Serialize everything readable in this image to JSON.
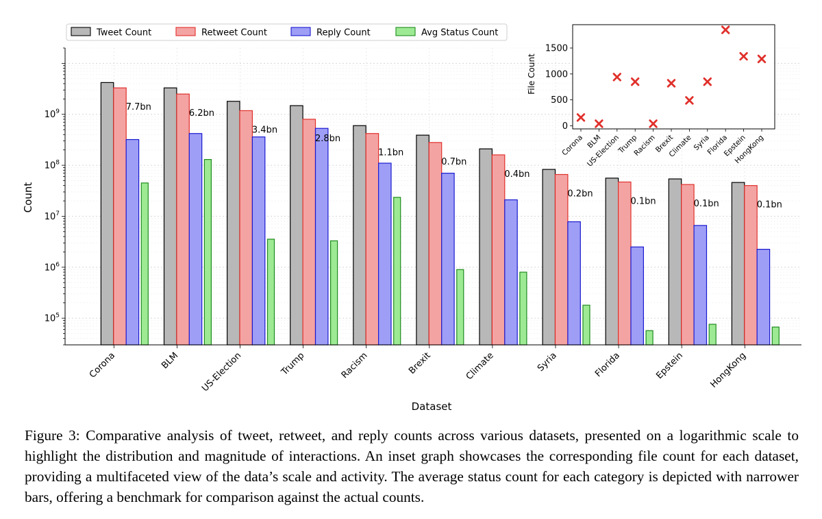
{
  "chart_data": [
    {
      "type": "bar",
      "scale": "log",
      "title": "",
      "xlabel": "Dataset",
      "ylabel": "Count",
      "categories": [
        "Corona",
        "BLM",
        "US-Election",
        "Trump",
        "Racism",
        "Brexit",
        "Climate",
        "Syria",
        "Florida",
        "Epstein",
        "HongKong"
      ],
      "series": [
        {
          "name": "Tweet Count",
          "color": "#b8b8b8",
          "edge": "#000000",
          "values": [
            4200000000,
            3300000000,
            1800000000,
            1480000000,
            600000000,
            390000000,
            210000000,
            83000000,
            56000000,
            54000000,
            46000000
          ]
        },
        {
          "name": "Retweet Count",
          "color": "#f4a3a3",
          "edge": "#e0302b",
          "values": [
            3300000000,
            2500000000,
            1180000000,
            800000000,
            420000000,
            280000000,
            160000000,
            66000000,
            47000000,
            42000000,
            40000000
          ]
        },
        {
          "name": "Reply Count",
          "color": "#9e9ef6",
          "edge": "#1a1ad0",
          "values": [
            320000000,
            420000000,
            360000000,
            530000000,
            110000000,
            70000000,
            21000000,
            7800000,
            2500000,
            6600000,
            2250000
          ]
        },
        {
          "name": "Avg Status Count",
          "color": "#9eea94",
          "edge": "#1e8a1e",
          "narrow": true,
          "values": [
            45000000,
            130000000,
            3550000,
            3300000,
            23500000,
            900000,
            800000,
            180000,
            57000,
            76000,
            67000
          ]
        }
      ],
      "data_labels": [
        "7.7bn",
        "6.2bn",
        "3.4bn",
        "2.8bn",
        "1.1bn",
        "0.7bn",
        "0.4bn",
        "0.2bn",
        "0.1bn",
        "0.1bn",
        "0.1bn"
      ],
      "yticks": [
        {
          "value": 100000,
          "base": "10",
          "exp": "5"
        },
        {
          "value": 1000000,
          "base": "10",
          "exp": "6"
        },
        {
          "value": 10000000,
          "base": "10",
          "exp": "7"
        },
        {
          "value": 100000000,
          "base": "10",
          "exp": "8"
        },
        {
          "value": 1000000000,
          "base": "10",
          "exp": "9"
        }
      ],
      "ylim": [
        30000,
        20000000000
      ],
      "grid": true,
      "legend": "top"
    },
    {
      "type": "scatter",
      "inset": true,
      "title": "",
      "xlabel": "",
      "ylabel": "File Count",
      "marker": "x",
      "color": "#e0302b",
      "categories": [
        "Corona",
        "BLM",
        "US-Election",
        "Trump",
        "Racism",
        "Brexit",
        "Climate",
        "Syria",
        "Florida",
        "Epstein",
        "HongKong"
      ],
      "values": [
        160,
        40,
        940,
        850,
        40,
        820,
        490,
        850,
        1850,
        1340,
        1290
      ],
      "yticks": [
        "0",
        "500",
        "1000",
        "1500"
      ],
      "ylim": [
        -60,
        1950
      ]
    }
  ],
  "caption": "Figure 3: Comparative analysis of tweet, retweet, and reply counts across various datasets, presented on a logarithmic scale to highlight the distribution and magnitude of interactions. An inset graph showcases the corresponding file count for each dataset, providing a multifaceted view of the data’s scale and activity. The average status count for each category is depicted with narrower bars, offering a benchmark for comparison against the actual counts."
}
